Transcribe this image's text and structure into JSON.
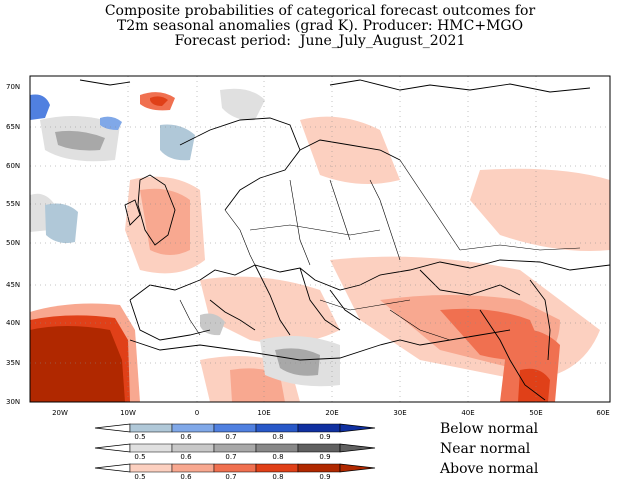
{
  "title": {
    "line1": "Composite probabilities of categorical forecast outcomes for",
    "line2": "T2m seasonal anomalies (grad K). Producer: HMC+MGO",
    "line3": "Forecast period:  June_July_August_2021"
  },
  "axes": {
    "lat_labels": [
      "70N",
      "65N",
      "60N",
      "55N",
      "50N",
      "45N",
      "40N",
      "35N",
      "30N"
    ],
    "lon_labels": [
      "20W",
      "10W",
      "0",
      "10E",
      "20E",
      "30E",
      "40E",
      "50E",
      "60E"
    ]
  },
  "legend": {
    "ticks": [
      "0.5",
      "0.6",
      "0.7",
      "0.8",
      "0.9"
    ],
    "bars": [
      {
        "label": "Below normal",
        "colors": [
          "#b0c8d8",
          "#80a8e8",
          "#5080e0",
          "#2858c8",
          "#1030a0"
        ]
      },
      {
        "label": "Near normal",
        "colors": [
          "#e0e0e0",
          "#c8c8c8",
          "#a8a8a8",
          "#888888",
          "#606060"
        ]
      },
      {
        "label": "Above normal",
        "colors": [
          "#fcd0c0",
          "#f8a890",
          "#f07050",
          "#e04018",
          "#b02800"
        ]
      }
    ]
  }
}
